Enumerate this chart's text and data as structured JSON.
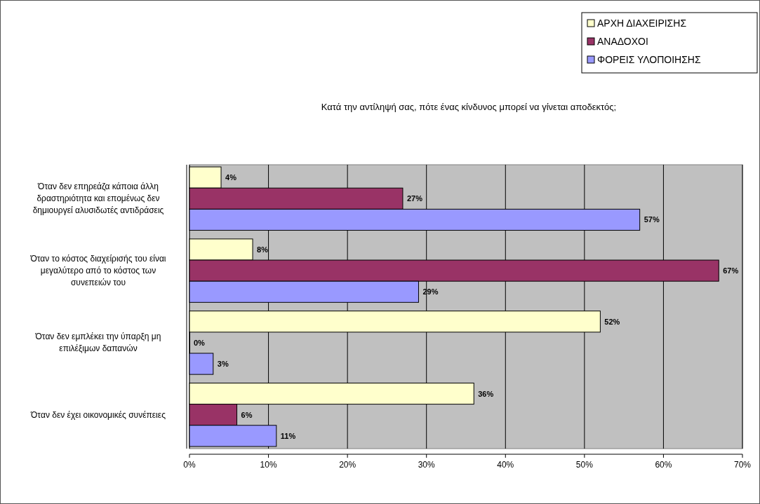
{
  "chart_data": {
    "type": "bar",
    "orientation": "horizontal",
    "title": "Κατά την αντίληψή σας, πότε ένας κίνδυνος μπορεί να γίνεται αποδεκτός;",
    "categories": [
      "Όταν δεν επηρεάζα κάποια άλλη δραστηριότητα και επομένως δεν δημιουργεί αλυσιδωτές αντιδράσεις",
      "Όταν το κόστος διαχείρισής του είναι μεγαλύτερο από το κόστος των συνεπειών του",
      "Όταν δεν εμπλέκει την ύπαρξη μη επιλέξιμων δαπανών",
      "Όταν δεν έχει οικονομικές συνέπειες"
    ],
    "series": [
      {
        "name": "ΑΡΧΗ ΔΙΑΧΕΙΡΙΣΗΣ",
        "color": "#ffffcc",
        "values": [
          4,
          8,
          52,
          36
        ],
        "value_labels": [
          "4%",
          "8%",
          "52%",
          "36%"
        ]
      },
      {
        "name": "ΑΝΑΔΟΧΟΙ",
        "color": "#993366",
        "values": [
          27,
          67,
          0,
          6
        ],
        "value_labels": [
          "27%",
          "67%",
          "0%",
          "6%"
        ]
      },
      {
        "name": "ΦΟΡΕΙΣ ΥΛΟΠΟΙΗΣΗΣ",
        "color": "#9999ff",
        "values": [
          57,
          29,
          3,
          11
        ],
        "value_labels": [
          "57%",
          "29%",
          "3%",
          "11%"
        ]
      }
    ],
    "xlim": [
      0,
      70
    ],
    "xticks": [
      {
        "value": 0,
        "label": "0%"
      },
      {
        "value": 10,
        "label": "10%"
      },
      {
        "value": 20,
        "label": "20%"
      },
      {
        "value": 30,
        "label": "30%"
      },
      {
        "value": 40,
        "label": "40%"
      },
      {
        "value": 50,
        "label": "50%"
      },
      {
        "value": 60,
        "label": "60%"
      },
      {
        "value": 70,
        "label": "70%"
      }
    ],
    "grid": "x",
    "legend": "top right"
  }
}
